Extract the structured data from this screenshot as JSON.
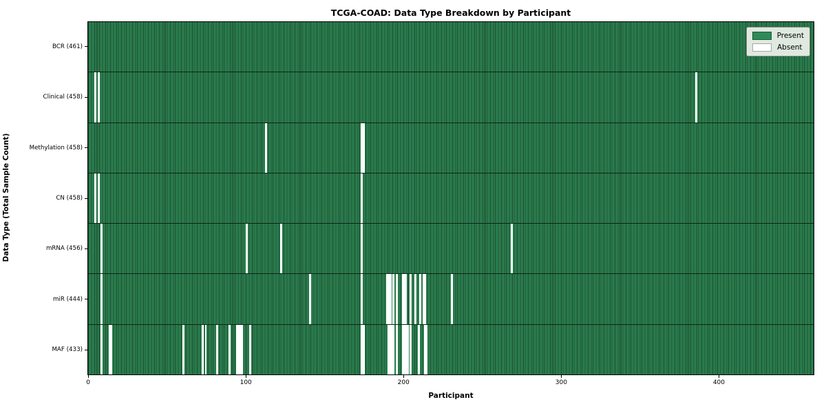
{
  "title": "TCGA-COAD: Data Type Breakdown by Participant",
  "legend": {
    "present_label": "Present",
    "absent_label": "Absent"
  },
  "colors": {
    "present": "#2e8b57",
    "absent": "#ffffff",
    "cell_edge": "#1a4027",
    "row_divider": "#0c2415",
    "legend_bg": "#dfe9df",
    "axis": "#000000"
  },
  "chart_data": {
    "type": "heatmap",
    "title": "TCGA-COAD: Data Type Breakdown by Participant",
    "xlabel": "Participant",
    "ylabel": "Data Type (Total Sample Count)",
    "legend": [
      "Present",
      "Absent"
    ],
    "legend_position": "upper right",
    "grid": false,
    "n_participants": 461,
    "x_range": [
      0,
      460
    ],
    "xticks": [
      0,
      100,
      200,
      300,
      400
    ],
    "rows": [
      {
        "label": "BCR (461)",
        "data_type": "BCR",
        "present_count": 461,
        "absent_participants": []
      },
      {
        "label": "Clinical (458)",
        "data_type": "Clinical",
        "present_count": 458,
        "absent_participants": [
          4,
          6,
          385
        ]
      },
      {
        "label": "Methylation (458)",
        "data_type": "Methylation",
        "present_count": 458,
        "absent_participants": [
          112,
          173,
          174
        ]
      },
      {
        "label": "CN (458)",
        "data_type": "CN",
        "present_count": 458,
        "absent_participants": [
          4,
          6,
          173
        ]
      },
      {
        "label": "mRNA (456)",
        "data_type": "mRNA",
        "present_count": 456,
        "absent_participants": [
          8,
          100,
          122,
          173,
          268
        ]
      },
      {
        "label": "miR (444)",
        "data_type": "miR",
        "present_count": 444,
        "absent_participants": [
          8,
          140,
          173,
          189,
          190,
          191,
          193,
          195,
          199,
          200,
          201,
          204,
          207,
          210,
          212,
          213,
          230
        ]
      },
      {
        "label": "MAF (433)",
        "data_type": "MAF",
        "present_count": 433,
        "absent_participants": [
          8,
          13,
          14,
          60,
          72,
          74,
          81,
          89,
          94,
          95,
          96,
          97,
          102,
          173,
          174,
          190,
          191,
          192,
          193,
          195,
          199,
          200,
          201,
          202,
          204,
          209,
          213,
          214
        ]
      }
    ]
  }
}
